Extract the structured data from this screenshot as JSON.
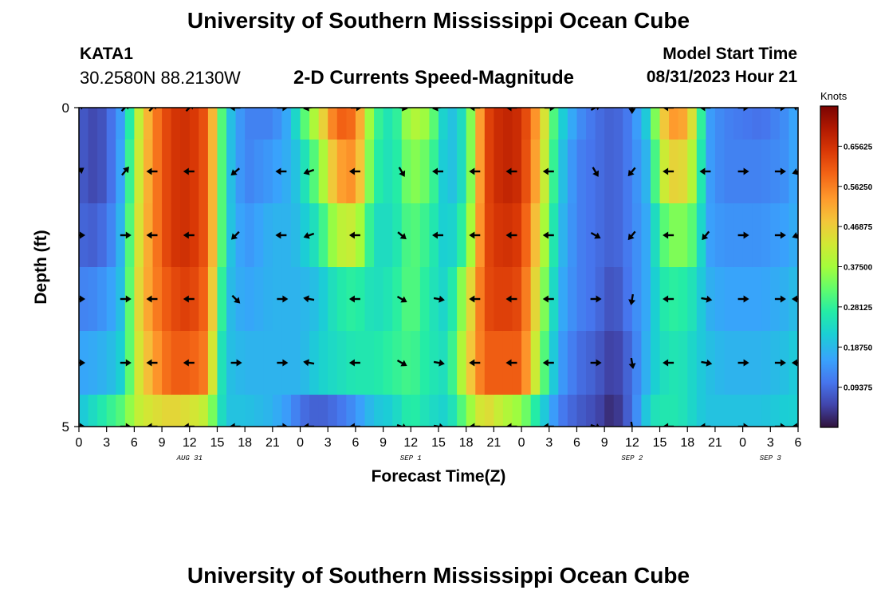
{
  "header": {
    "top_title": "University of Southern Mississippi Ocean Cube",
    "station_id": "KATA1",
    "coords": "30.2580N  88.2130W",
    "subtitle": "2-D Currents Speed-Magnitude",
    "model_start_label": "Model Start Time",
    "model_start_value": "08/31/2023 Hour 21"
  },
  "footer": {
    "bottom_title": "University of Southern Mississippi Ocean Cube"
  },
  "chart_data": {
    "type": "heatmap",
    "title": "2-D Currents Speed-Magnitude",
    "xlabel": "Forecast Time(Z)",
    "ylabel": "Depth (ft)",
    "xlim": [
      0,
      78
    ],
    "ylim": [
      0,
      5
    ],
    "y_ticks": [
      0,
      5
    ],
    "x_tick_values": [
      0,
      3,
      6,
      9,
      12,
      15,
      18,
      21,
      24,
      27,
      30,
      33,
      36,
      39,
      42,
      45,
      48,
      51,
      54,
      57,
      60,
      63,
      66,
      69,
      72,
      75,
      78
    ],
    "x_tick_labels": [
      "0",
      "3",
      "6",
      "9",
      "12",
      "15",
      "18",
      "21",
      "0",
      "3",
      "6",
      "9",
      "12",
      "15",
      "18",
      "21",
      "0",
      "3",
      "6",
      "9",
      "12",
      "15",
      "18",
      "21",
      "0",
      "3",
      "6"
    ],
    "date_labels": [
      {
        "text": "AUG 31",
        "x": 12
      },
      {
        "text": "SEP 1",
        "x": 36
      },
      {
        "text": "SEP 2",
        "x": 60
      },
      {
        "text": "SEP 3",
        "x": 75
      }
    ],
    "colorbar": {
      "label": "Knots",
      "min": 0,
      "max": 0.75,
      "ticks": [
        0.09375,
        0.1875,
        0.28125,
        0.375,
        0.46875,
        0.5625,
        0.65625
      ],
      "tick_labels": [
        "0.09375",
        "0.18750",
        "0.28125",
        "0.37500",
        "0.46875",
        "0.56250",
        "0.65625"
      ]
    },
    "speed_profile": [
      [
        0,
        0.08,
        0.08,
        0.09,
        0.12,
        0.16,
        0.2
      ],
      [
        2,
        0.05,
        0.05,
        0.08,
        0.13,
        0.17,
        0.25
      ],
      [
        4,
        0.12,
        0.12,
        0.14,
        0.17,
        0.2,
        0.3
      ],
      [
        5,
        0.18,
        0.2,
        0.22,
        0.22,
        0.24,
        0.32
      ],
      [
        6,
        0.36,
        0.38,
        0.4,
        0.42,
        0.4,
        0.4
      ],
      [
        8,
        0.55,
        0.55,
        0.55,
        0.55,
        0.52,
        0.44
      ],
      [
        10,
        0.65,
        0.65,
        0.65,
        0.62,
        0.6,
        0.46
      ],
      [
        12,
        0.66,
        0.66,
        0.66,
        0.64,
        0.6,
        0.44
      ],
      [
        14,
        0.6,
        0.6,
        0.6,
        0.58,
        0.56,
        0.4
      ],
      [
        15,
        0.4,
        0.4,
        0.4,
        0.36,
        0.3,
        0.28
      ],
      [
        16,
        0.22,
        0.22,
        0.22,
        0.2,
        0.2,
        0.2
      ],
      [
        18,
        0.12,
        0.12,
        0.14,
        0.16,
        0.18,
        0.2
      ],
      [
        21,
        0.12,
        0.15,
        0.18,
        0.18,
        0.18,
        0.18
      ],
      [
        23,
        0.18,
        0.18,
        0.18,
        0.18,
        0.18,
        0.14
      ],
      [
        24,
        0.28,
        0.22,
        0.2,
        0.18,
        0.18,
        0.1
      ],
      [
        26,
        0.42,
        0.34,
        0.26,
        0.2,
        0.22,
        0.08
      ],
      [
        28,
        0.6,
        0.52,
        0.4,
        0.26,
        0.24,
        0.1
      ],
      [
        30,
        0.58,
        0.55,
        0.42,
        0.28,
        0.26,
        0.14
      ],
      [
        32,
        0.3,
        0.28,
        0.24,
        0.24,
        0.26,
        0.2
      ],
      [
        34,
        0.24,
        0.24,
        0.24,
        0.26,
        0.28,
        0.22
      ],
      [
        36,
        0.4,
        0.36,
        0.32,
        0.32,
        0.3,
        0.28
      ],
      [
        38,
        0.36,
        0.32,
        0.28,
        0.26,
        0.26,
        0.24
      ],
      [
        40,
        0.18,
        0.18,
        0.2,
        0.22,
        0.24,
        0.22
      ],
      [
        42,
        0.26,
        0.26,
        0.3,
        0.4,
        0.44,
        0.34
      ],
      [
        44,
        0.62,
        0.62,
        0.62,
        0.62,
        0.6,
        0.46
      ],
      [
        46,
        0.68,
        0.68,
        0.66,
        0.64,
        0.6,
        0.4
      ],
      [
        48,
        0.66,
        0.66,
        0.64,
        0.62,
        0.6,
        0.36
      ],
      [
        50,
        0.5,
        0.48,
        0.44,
        0.4,
        0.36,
        0.24
      ],
      [
        52,
        0.24,
        0.22,
        0.2,
        0.18,
        0.16,
        0.12
      ],
      [
        54,
        0.14,
        0.12,
        0.12,
        0.12,
        0.1,
        0.08
      ],
      [
        56,
        0.1,
        0.1,
        0.1,
        0.1,
        0.08,
        0.06
      ],
      [
        58,
        0.08,
        0.08,
        0.08,
        0.06,
        0.04,
        0.02
      ],
      [
        60,
        0.12,
        0.12,
        0.12,
        0.12,
        0.1,
        0.1
      ],
      [
        62,
        0.24,
        0.2,
        0.18,
        0.18,
        0.2,
        0.24
      ],
      [
        63,
        0.45,
        0.4,
        0.3,
        0.26,
        0.24,
        0.26
      ],
      [
        65,
        0.56,
        0.48,
        0.36,
        0.28,
        0.26,
        0.26
      ],
      [
        67,
        0.4,
        0.36,
        0.3,
        0.24,
        0.22,
        0.22
      ],
      [
        68,
        0.16,
        0.16,
        0.16,
        0.18,
        0.2,
        0.2
      ],
      [
        70,
        0.12,
        0.12,
        0.14,
        0.16,
        0.18,
        0.2
      ],
      [
        74,
        0.1,
        0.12,
        0.14,
        0.16,
        0.18,
        0.2
      ],
      [
        77,
        0.14,
        0.14,
        0.16,
        0.18,
        0.2,
        0.22
      ],
      [
        78,
        0.18,
        0.18,
        0.18,
        0.2,
        0.22,
        0.22
      ]
    ],
    "vector_depths": [
      0,
      1,
      2,
      3,
      4,
      5
    ],
    "vectors": [
      {
        "t": 0,
        "dirs": [
          -45,
          -35,
          0,
          0,
          0,
          0
        ]
      },
      {
        "t": 5,
        "dirs": [
          -45,
          -50,
          0,
          0,
          0,
          0
        ]
      },
      {
        "t": 8,
        "dirs": [
          -45,
          180,
          180,
          180,
          180,
          180
        ]
      },
      {
        "t": 12,
        "dirs": [
          -45,
          180,
          180,
          180,
          180,
          180
        ]
      },
      {
        "t": 17,
        "dirs": [
          180,
          140,
          135,
          45,
          0,
          180
        ]
      },
      {
        "t": 22,
        "dirs": [
          0,
          180,
          180,
          0,
          0,
          0
        ]
      },
      {
        "t": 25,
        "dirs": [
          170,
          160,
          160,
          190,
          190,
          180
        ]
      },
      {
        "t": 30,
        "dirs": [
          0,
          180,
          180,
          180,
          180,
          180
        ]
      },
      {
        "t": 35,
        "dirs": [
          10,
          60,
          40,
          30,
          30,
          20
        ]
      },
      {
        "t": 39,
        "dirs": [
          170,
          180,
          180,
          10,
          10,
          10
        ]
      },
      {
        "t": 43,
        "dirs": [
          180,
          180,
          180,
          180,
          180,
          180
        ]
      },
      {
        "t": 47,
        "dirs": [
          180,
          180,
          180,
          180,
          180,
          180
        ]
      },
      {
        "t": 51,
        "dirs": [
          0,
          180,
          180,
          180,
          180,
          180
        ]
      },
      {
        "t": 56,
        "dirs": [
          -30,
          60,
          30,
          0,
          0,
          20
        ]
      },
      {
        "t": 60,
        "dirs": [
          90,
          130,
          130,
          100,
          80,
          80
        ]
      },
      {
        "t": 64,
        "dirs": [
          180,
          180,
          180,
          180,
          180,
          180
        ]
      },
      {
        "t": 68,
        "dirs": [
          180,
          180,
          130,
          10,
          10,
          180
        ]
      },
      {
        "t": 72,
        "dirs": [
          0,
          0,
          0,
          0,
          0,
          0
        ]
      },
      {
        "t": 76,
        "dirs": [
          0,
          0,
          0,
          0,
          0,
          0
        ]
      },
      {
        "t": 78,
        "dirs": [
          200,
          160,
          160,
          180,
          180,
          180
        ]
      }
    ]
  }
}
